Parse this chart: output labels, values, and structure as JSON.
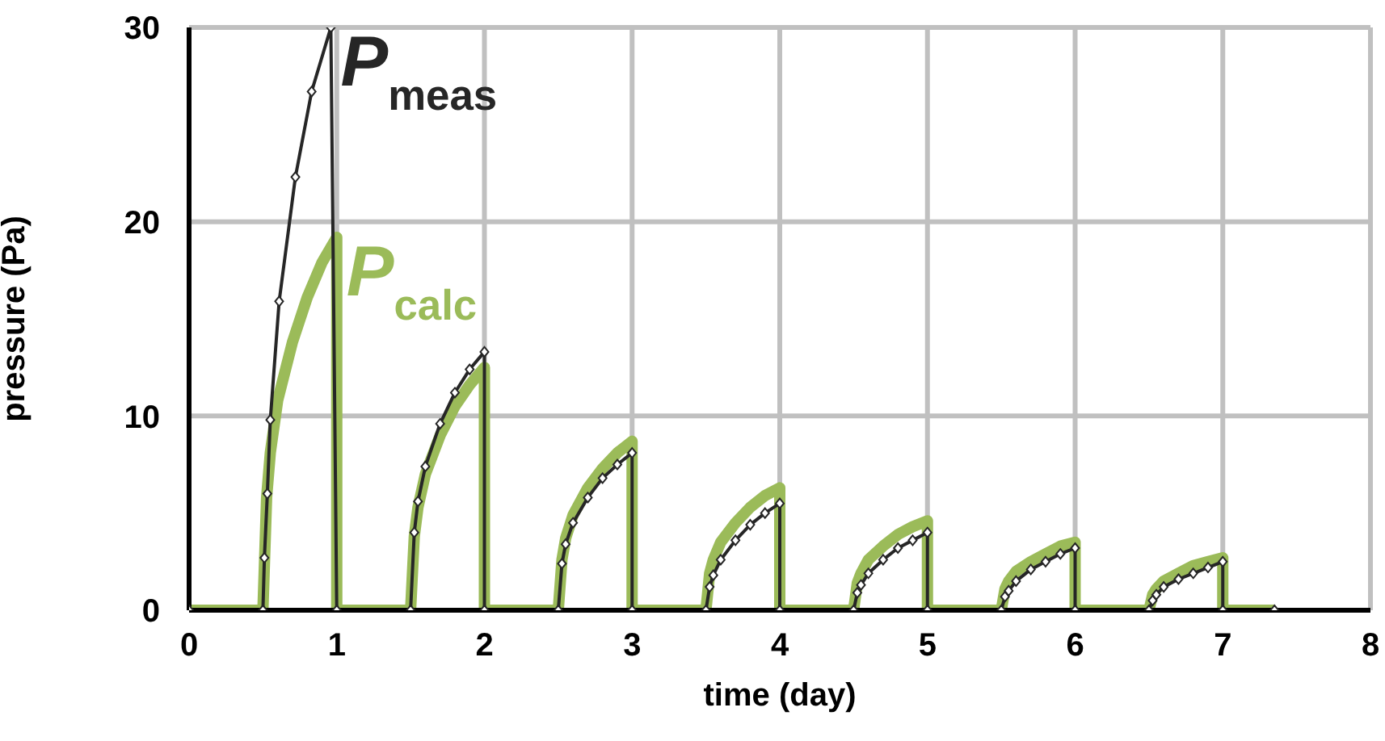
{
  "chart_data": {
    "type": "line",
    "xlabel": "time (day)",
    "ylabel": "pressure (Pa)",
    "xlim": [
      0,
      8
    ],
    "xticks": [
      0,
      1,
      2,
      3,
      4,
      5,
      6,
      7,
      8
    ],
    "ylim": [
      0,
      30
    ],
    "yticks": [
      0,
      10,
      20,
      30
    ],
    "grid": true,
    "legend": false,
    "series": [
      {
        "name": "P$_{calc}$",
        "color": "#9bbb59",
        "line_style": "solid",
        "marker": "none",
        "x": [
          0,
          0.5,
          0.525,
          0.55,
          0.6,
          0.7,
          0.8,
          0.9,
          1.0,
          1.0,
          1.5,
          1.525,
          1.55,
          1.6,
          1.7,
          1.8,
          1.9,
          2.0,
          2.0,
          2.5,
          2.525,
          2.55,
          2.6,
          2.7,
          2.8,
          2.9,
          3.0,
          3.0,
          3.5,
          3.525,
          3.55,
          3.6,
          3.7,
          3.8,
          3.9,
          4.0,
          4.0,
          4.5,
          4.525,
          4.55,
          4.6,
          4.7,
          4.8,
          4.9,
          5.0,
          5.0,
          5.5,
          5.525,
          5.55,
          5.6,
          5.7,
          5.8,
          5.9,
          6.0,
          6.0,
          6.5,
          6.525,
          6.55,
          6.6,
          6.7,
          6.8,
          6.9,
          7.0,
          7.0,
          7.35
        ],
        "values": [
          0,
          0,
          5.8,
          8.1,
          10.8,
          13.8,
          16.1,
          17.9,
          19.2,
          0,
          0,
          3.8,
          5.3,
          7.0,
          9.0,
          10.5,
          11.6,
          12.5,
          0,
          0,
          2.6,
          3.7,
          4.9,
          6.3,
          7.3,
          8.1,
          8.7,
          0,
          0,
          1.9,
          2.6,
          3.5,
          4.5,
          5.3,
          5.9,
          6.3,
          0,
          0,
          1.4,
          1.9,
          2.6,
          3.3,
          3.9,
          4.3,
          4.6,
          0,
          0,
          1.1,
          1.5,
          2.0,
          2.5,
          2.9,
          3.3,
          3.5,
          0,
          0,
          0.8,
          1.1,
          1.5,
          1.9,
          2.3,
          2.5,
          2.7,
          0,
          0
        ]
      },
      {
        "name": "P$_{meas}$",
        "color": "#262626",
        "line_style": "solid",
        "marker": "diamond",
        "x": [
          0,
          0.5,
          0.51,
          0.53,
          0.55,
          0.61,
          0.72,
          0.83,
          0.96,
          1.0,
          1.5,
          1.525,
          1.55,
          1.6,
          1.7,
          1.8,
          1.9,
          2.0,
          2.0,
          2.5,
          2.525,
          2.55,
          2.6,
          2.7,
          2.8,
          2.9,
          3.0,
          3.0,
          3.5,
          3.525,
          3.55,
          3.6,
          3.7,
          3.8,
          3.9,
          4.0,
          4.0,
          4.5,
          4.525,
          4.55,
          4.6,
          4.7,
          4.8,
          4.9,
          5.0,
          5.0,
          5.5,
          5.525,
          5.55,
          5.6,
          5.7,
          5.8,
          5.9,
          6.0,
          6.0,
          6.5,
          6.525,
          6.55,
          6.6,
          6.7,
          6.8,
          6.9,
          7.0,
          7.0,
          7.35
        ],
        "values": [
          0,
          0,
          2.7,
          6.0,
          9.8,
          15.9,
          22.3,
          26.7,
          30,
          0,
          0,
          4.0,
          5.6,
          7.4,
          9.6,
          11.2,
          12.4,
          13.3,
          0,
          0,
          2.4,
          3.4,
          4.5,
          5.8,
          6.8,
          7.5,
          8.1,
          0,
          0,
          1.2,
          1.8,
          2.6,
          3.6,
          4.4,
          5.0,
          5.5,
          0,
          0,
          0.9,
          1.3,
          1.9,
          2.6,
          3.2,
          3.6,
          4.0,
          0,
          0,
          0.7,
          1.0,
          1.5,
          2.1,
          2.5,
          2.9,
          3.2,
          0,
          0,
          0.5,
          0.8,
          1.2,
          1.6,
          1.9,
          2.2,
          2.5,
          0,
          0
        ]
      }
    ]
  }
}
